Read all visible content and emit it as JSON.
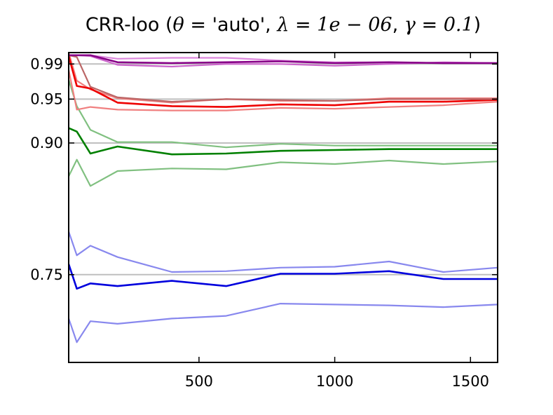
{
  "chart_data": {
    "type": "line",
    "title": {
      "prefix": "CRR-loo (",
      "theta_sym": "θ",
      "theta_eq": " = ",
      "theta_val": "'auto'",
      "sep1": ", ",
      "lambda_sym": "λ",
      "lambda_eq": " = ",
      "lambda_val": "1e − 06",
      "sep2": ", ",
      "gamma_sym": "γ",
      "gamma_eq": " = ",
      "gamma_val": "0.1",
      "suffix": ")"
    },
    "xlabel": "",
    "ylabel": "",
    "xlim": [
      20,
      1600
    ],
    "ylim": [
      0.65,
      1.003
    ],
    "x_ticks": [
      500,
      1000,
      1500
    ],
    "x_tick_labels": [
      "500",
      "1000",
      "1500"
    ],
    "y_ticks": [
      0.75,
      0.9,
      0.95,
      0.99
    ],
    "y_tick_labels": [
      "0.75",
      "0.90",
      "0.95",
      "0.99"
    ],
    "reference_lines": [
      0.75,
      0.9,
      0.95,
      0.99
    ],
    "reference_color": "#bfbfbf",
    "x": [
      20,
      50,
      100,
      200,
      400,
      600,
      800,
      1000,
      1200,
      1400,
      1600
    ],
    "series": [
      {
        "color": "#8888ee",
        "opacity": 1,
        "width": 2.2,
        "values": [
          0.7,
          0.673,
          0.697,
          0.694,
          0.7,
          0.703,
          0.717,
          0.716,
          0.715,
          0.713,
          0.716
        ]
      },
      {
        "color": "#8888ee",
        "opacity": 1,
        "width": 2.2,
        "values": [
          0.799,
          0.772,
          0.783,
          0.77,
          0.753,
          0.754,
          0.758,
          0.759,
          0.765,
          0.753,
          0.758
        ]
      },
      {
        "color": "#0000dd",
        "opacity": 1,
        "width": 2.6,
        "values": [
          0.762,
          0.734,
          0.74,
          0.737,
          0.743,
          0.737,
          0.751,
          0.751,
          0.754,
          0.745,
          0.745
        ]
      },
      {
        "color": "#80c080",
        "opacity": 1,
        "width": 2.2,
        "values": [
          0.862,
          0.881,
          0.851,
          0.868,
          0.871,
          0.87,
          0.878,
          0.876,
          0.88,
          0.876,
          0.879
        ]
      },
      {
        "color": "#80c080",
        "opacity": 1,
        "width": 2.2,
        "values": [
          0.972,
          0.942,
          0.915,
          0.901,
          0.901,
          0.895,
          0.899,
          0.897,
          0.897,
          0.897,
          0.897
        ]
      },
      {
        "color": "#008000",
        "opacity": 1,
        "width": 2.6,
        "values": [
          0.917,
          0.913,
          0.888,
          0.896,
          0.887,
          0.888,
          0.891,
          0.892,
          0.893,
          0.893,
          0.893
        ]
      },
      {
        "color": "#f08080",
        "opacity": 1,
        "width": 2.2,
        "values": [
          0.983,
          0.938,
          0.941,
          0.938,
          0.937,
          0.937,
          0.94,
          0.939,
          0.941,
          0.943,
          0.947
        ]
      },
      {
        "color": "#f08080",
        "opacity": 1,
        "width": 2.2,
        "values": [
          1.003,
          0.971,
          0.961,
          0.951,
          0.946,
          0.95,
          0.948,
          0.948,
          0.951,
          0.951,
          0.951
        ]
      },
      {
        "color": "#ee0000",
        "opacity": 1,
        "width": 2.6,
        "values": [
          0.999,
          0.965,
          0.962,
          0.946,
          0.942,
          0.941,
          0.944,
          0.943,
          0.947,
          0.947,
          0.949
        ]
      },
      {
        "color": "#bb6666",
        "opacity": 1,
        "width": 2.2,
        "values": [
          1.0,
          0.998,
          0.964,
          0.952,
          0.947,
          0.95,
          0.949,
          0.948,
          0.95,
          0.95,
          0.95
        ]
      },
      {
        "color": "#cc66cc",
        "opacity": 1,
        "width": 2.2,
        "values": [
          1.0,
          1.0,
          0.999,
          0.989,
          0.987,
          0.99,
          0.99,
          0.988,
          0.99,
          0.992,
          0.991
        ]
      },
      {
        "color": "#dd88dd",
        "opacity": 1,
        "width": 2.2,
        "values": [
          1.0,
          1.0,
          1.0,
          0.996,
          0.997,
          0.997,
          0.994,
          0.992,
          0.992,
          0.991,
          0.991
        ]
      },
      {
        "color": "#880088",
        "opacity": 1,
        "width": 2.6,
        "values": [
          1.0,
          1.0,
          1.0,
          0.992,
          0.991,
          0.992,
          0.993,
          0.991,
          0.992,
          0.991,
          0.991
        ]
      }
    ]
  }
}
